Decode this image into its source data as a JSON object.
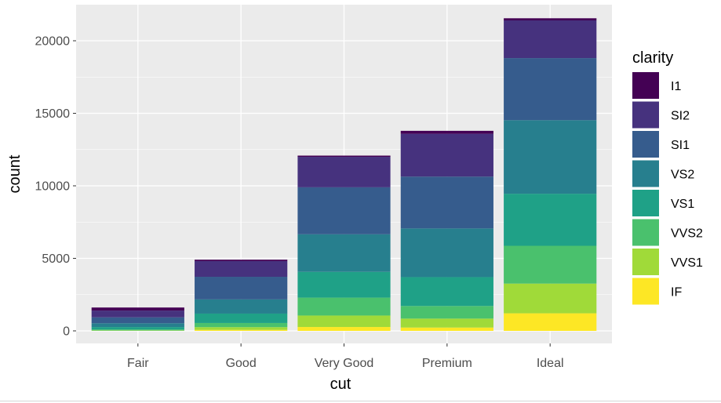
{
  "chart_data": {
    "type": "bar",
    "stacked": true,
    "xlabel": "cut",
    "ylabel": "count",
    "categories": [
      "Fair",
      "Good",
      "Very Good",
      "Premium",
      "Ideal"
    ],
    "yticks": [
      0,
      5000,
      10000,
      15000,
      20000
    ],
    "ytick_labels": [
      "0",
      "5000",
      "10000",
      "15000",
      "20000"
    ],
    "ylim": [
      0,
      22500
    ],
    "grid": true,
    "legend_position": "right",
    "legend_title": "clarity",
    "series": [
      {
        "name": "IF",
        "color": "#FDE725",
        "values": [
          9,
          71,
          268,
          230,
          1212
        ]
      },
      {
        "name": "VVS1",
        "color": "#A0DA39",
        "values": [
          17,
          186,
          789,
          616,
          2047
        ]
      },
      {
        "name": "VVS2",
        "color": "#4AC16D",
        "values": [
          69,
          286,
          1235,
          870,
          2606
        ]
      },
      {
        "name": "VS1",
        "color": "#1FA187",
        "values": [
          170,
          648,
          1775,
          1989,
          3589
        ]
      },
      {
        "name": "VS2",
        "color": "#277F8E",
        "values": [
          261,
          978,
          2591,
          3357,
          5071
        ]
      },
      {
        "name": "SI1",
        "color": "#365C8D",
        "values": [
          408,
          1560,
          3240,
          3575,
          4282
        ]
      },
      {
        "name": "SI2",
        "color": "#46327E",
        "values": [
          466,
          1081,
          2100,
          2949,
          2598
        ]
      },
      {
        "name": "I1",
        "color": "#440154",
        "values": [
          210,
          96,
          84,
          205,
          146
        ]
      }
    ],
    "legend_order": [
      "I1",
      "SI2",
      "SI1",
      "VS2",
      "VS1",
      "VVS2",
      "VVS1",
      "IF"
    ]
  }
}
